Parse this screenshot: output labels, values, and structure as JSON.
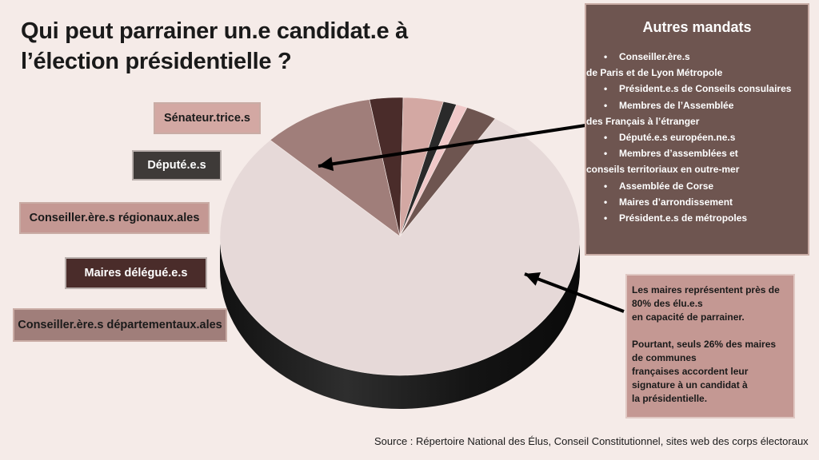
{
  "title": "Qui peut parrainer un.e candidat.e à l’élection présidentielle ?",
  "labels": {
    "senateurs": "Sénateur.trice.s",
    "deputes": "Député.e.s",
    "regionaux": "Conseiller.ère.s régionaux.ales",
    "maires_delegues": "Maires délégué.e.s",
    "departementaux": "Conseiller.ère.s départementaux.ales"
  },
  "autres": {
    "title": "Autres mandats",
    "items": [
      {
        "line1": "Conseiller.ère.s",
        "line2": "de Paris et de Lyon Métropole"
      },
      {
        "line1": "Président.e.s de Conseils consulaires",
        "line2": ""
      },
      {
        "line1": "Membres de l’Assemblée",
        "line2": "des Français à l’étranger"
      },
      {
        "line1": "Député.e.s européen.ne.s",
        "line2": ""
      },
      {
        "line1": "Membres d’assemblées et",
        "line2": "conseils territoriaux en outre-mer"
      },
      {
        "line1": "Assemblée de Corse",
        "line2": ""
      },
      {
        "line1": "Maires d’arrondissement",
        "line2": ""
      },
      {
        "line1": "Président.e.s de métropoles",
        "line2": ""
      }
    ]
  },
  "maires_note": {
    "p1_lines": [
      "Les maires représentent près de",
      "80% des élu.e.s",
      "en capacité de parrainer."
    ],
    "p2_lines": [
      "Pourtant, seuls 26% des maires",
      "de communes",
      "françaises accordent leur",
      "signature à un candidat à",
      "la présidentielle."
    ]
  },
  "source": "Source : Répertoire National des Élus, Conseil Constitutionnel, sites web des corps électoraux",
  "chart_data": {
    "type": "pie",
    "slices": [
      {
        "label": "Maires",
        "value": 78.3,
        "color": "#e6d9d8"
      },
      {
        "label": "Conseiller.ère.s départementaux.ales",
        "value": 10.1,
        "color": "#a07e7a"
      },
      {
        "label": "Maires délégué.e.s",
        "value": 3.0,
        "color": "#4a2c2a"
      },
      {
        "label": "Conseiller.ère.s régionaux.ales",
        "value": 3.6,
        "color": "#d3a8a3"
      },
      {
        "label": "Député.e.s",
        "value": 1.2,
        "color": "#2a2a2a"
      },
      {
        "label": "Sénateur.trice.s",
        "value": 1.0,
        "color": "#f0c8c8"
      },
      {
        "label": "Autres mandats",
        "value": 2.8,
        "color": "#6e5550"
      }
    ]
  }
}
